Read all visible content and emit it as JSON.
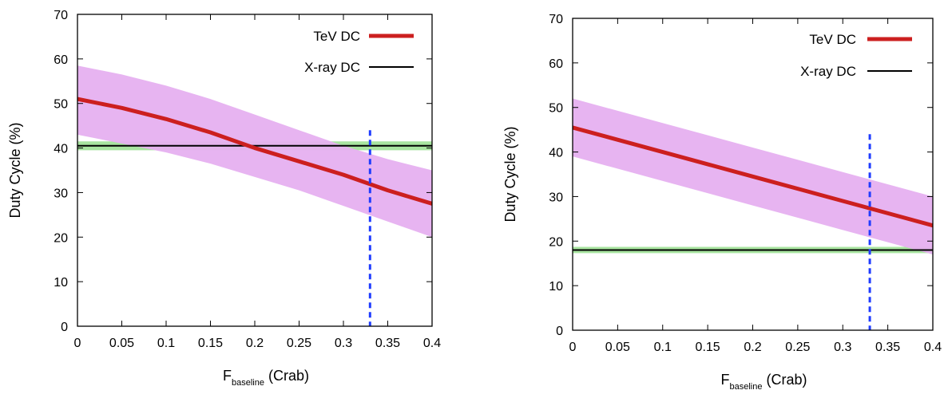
{
  "figure": {
    "panels": [
      {
        "ylabel": "Duty Cycle (%)",
        "xlabel_main": "F",
        "xlabel_sub": "baseline",
        "xlabel_rest": " (Crab)"
      },
      {
        "ylabel": "Duty Cycle (%)",
        "xlabel_main": "F",
        "xlabel_sub": "baseline",
        "xlabel_rest": " (Crab)"
      }
    ]
  },
  "colors": {
    "tev_line": "#cc1f1f",
    "tev_band": "#e6b0f0",
    "xray_line": "#000000",
    "xray_band": "#a8e4a0",
    "vline": "#1f3cff"
  },
  "chart_data": [
    {
      "type": "line",
      "xlim": [
        0,
        0.4
      ],
      "ylim": [
        0,
        70
      ],
      "xticks": [
        "0",
        "0.05",
        "0.1",
        "0.15",
        "0.2",
        "0.25",
        "0.3",
        "0.35",
        "0.4"
      ],
      "yticks": [
        "0",
        "10",
        "20",
        "30",
        "40",
        "50",
        "60",
        "70"
      ],
      "grid": false,
      "legend_position": "top-right",
      "series": [
        {
          "name": "TeV DC",
          "x": [
            0,
            0.05,
            0.1,
            0.15,
            0.2,
            0.25,
            0.3,
            0.35,
            0.4
          ],
          "y": [
            51,
            49,
            46.5,
            43.5,
            40,
            37,
            34,
            30.5,
            27.5
          ],
          "band_lower": [
            43,
            41,
            39,
            36.5,
            33.5,
            30.5,
            27,
            23.5,
            20
          ],
          "band_upper": [
            58.5,
            56.5,
            54,
            51,
            47.5,
            44,
            40.5,
            37.5,
            35
          ]
        },
        {
          "name": "X-ray DC",
          "x": [
            0,
            0.4
          ],
          "y": [
            40.5,
            40.5
          ],
          "band_lower": [
            39.5,
            39.5
          ],
          "band_upper": [
            41.5,
            41.5
          ]
        }
      ],
      "vertical_line_x": 0.33
    },
    {
      "type": "line",
      "xlim": [
        0,
        0.4
      ],
      "ylim": [
        0,
        70
      ],
      "xticks": [
        "0",
        "0.05",
        "0.1",
        "0.15",
        "0.2",
        "0.25",
        "0.3",
        "0.35",
        "0.4"
      ],
      "yticks": [
        "0",
        "10",
        "20",
        "30",
        "40",
        "50",
        "60",
        "70"
      ],
      "grid": false,
      "legend_position": "top-right",
      "series": [
        {
          "name": "TeV DC",
          "x": [
            0,
            0.1,
            0.2,
            0.3,
            0.4
          ],
          "y": [
            45.5,
            40,
            34.5,
            29,
            23.5
          ],
          "band_lower": [
            39,
            33.5,
            28,
            22.5,
            17
          ],
          "band_upper": [
            52,
            46.5,
            41,
            35.5,
            30
          ]
        },
        {
          "name": "X-ray DC",
          "x": [
            0,
            0.4
          ],
          "y": [
            18,
            18
          ],
          "band_lower": [
            17.3,
            17.3
          ],
          "band_upper": [
            18.7,
            18.7
          ]
        }
      ],
      "vertical_line_x": 0.33
    }
  ]
}
